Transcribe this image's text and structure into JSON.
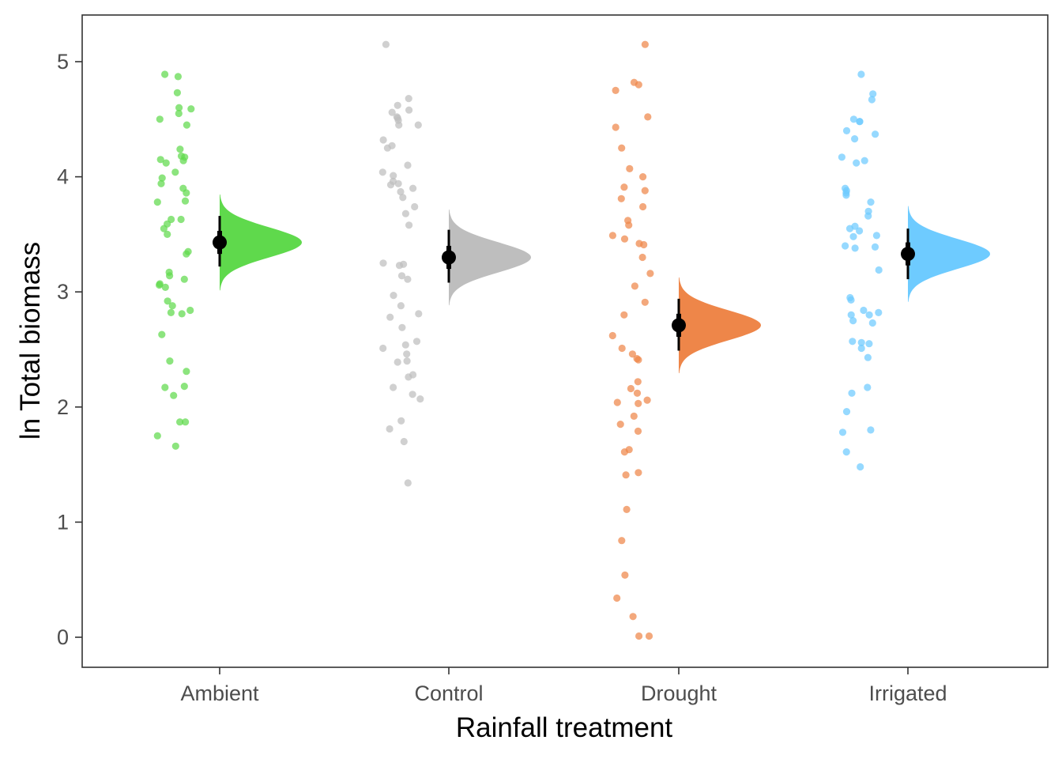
{
  "chart_data": {
    "type": "scatter",
    "subtype": "raincloud-halfeye",
    "title": "",
    "xlabel": "Rainfall treatment",
    "ylabel": "ln Total biomass",
    "ylim": [
      -0.25,
      5.35
    ],
    "yticks": [
      0,
      1,
      2,
      3,
      4,
      5
    ],
    "grid": false,
    "legend": "none",
    "categories": [
      "Ambient",
      "Control",
      "Drought",
      "Irrigated"
    ],
    "series": [
      {
        "category": "Ambient",
        "color": "#5FD94C",
        "mean": 3.43,
        "interval_66": [
          3.33,
          3.53
        ],
        "interval_95": [
          3.22,
          3.66
        ],
        "density_sd": 0.13,
        "points": [
          4.87,
          4.89,
          4.73,
          4.59,
          4.6,
          4.55,
          4.5,
          4.45,
          4.24,
          4.17,
          4.18,
          4.12,
          4.14,
          4.15,
          4.04,
          3.99,
          3.94,
          3.9,
          3.86,
          3.79,
          3.78,
          3.63,
          3.63,
          3.59,
          3.55,
          3.5,
          3.35,
          3.33,
          3.17,
          3.14,
          3.11,
          3.07,
          3.06,
          3.04,
          2.92,
          2.88,
          2.84,
          2.82,
          2.81,
          2.63,
          2.4,
          2.31,
          2.18,
          2.17,
          2.1,
          1.87,
          1.87,
          1.75,
          1.66
        ]
      },
      {
        "category": "Control",
        "color": "#BEBEBE",
        "mean": 3.3,
        "interval_66": [
          3.2,
          3.4
        ],
        "interval_95": [
          3.08,
          3.54
        ],
        "density_sd": 0.13,
        "points": [
          5.15,
          4.68,
          4.62,
          4.58,
          4.56,
          4.52,
          4.51,
          4.49,
          4.45,
          4.45,
          4.32,
          4.27,
          4.25,
          4.1,
          4.04,
          4.01,
          3.96,
          3.94,
          3.93,
          3.9,
          3.87,
          3.82,
          3.74,
          3.68,
          3.58,
          3.25,
          3.24,
          3.23,
          3.14,
          3.11,
          2.97,
          2.88,
          2.81,
          2.78,
          2.69,
          2.57,
          2.54,
          2.51,
          2.46,
          2.4,
          2.39,
          2.28,
          2.26,
          2.17,
          2.11,
          2.07,
          1.88,
          1.81,
          1.7,
          1.34
        ]
      },
      {
        "category": "Drought",
        "color": "#EE8649",
        "mean": 2.71,
        "interval_66": [
          2.61,
          2.81
        ],
        "interval_95": [
          2.49,
          2.94
        ],
        "density_sd": 0.13,
        "points": [
          5.15,
          4.82,
          4.8,
          4.75,
          4.52,
          4.43,
          4.25,
          4.07,
          4.0,
          3.91,
          3.88,
          3.81,
          3.74,
          3.62,
          3.58,
          3.49,
          3.46,
          3.42,
          3.41,
          3.3,
          3.16,
          3.05,
          2.91,
          2.8,
          2.62,
          2.51,
          2.46,
          2.42,
          2.41,
          2.22,
          2.16,
          2.12,
          2.06,
          2.03,
          2.04,
          1.92,
          1.85,
          1.79,
          1.63,
          1.61,
          1.43,
          1.41,
          1.11,
          0.84,
          0.54,
          0.34,
          0.18,
          0.01,
          0.01
        ]
      },
      {
        "category": "Irrigated",
        "color": "#6ECBFF",
        "mean": 3.33,
        "interval_66": [
          3.23,
          3.43
        ],
        "interval_95": [
          3.11,
          3.55
        ],
        "density_sd": 0.13,
        "points": [
          4.89,
          4.72,
          4.67,
          4.5,
          4.48,
          4.48,
          4.4,
          4.37,
          4.33,
          4.17,
          4.14,
          4.12,
          3.9,
          3.88,
          3.86,
          3.84,
          3.78,
          3.7,
          3.66,
          3.57,
          3.55,
          3.53,
          3.49,
          3.48,
          3.4,
          3.39,
          3.38,
          3.19,
          2.95,
          2.93,
          2.84,
          2.82,
          2.8,
          2.8,
          2.75,
          2.73,
          2.57,
          2.56,
          2.55,
          2.51,
          2.43,
          2.17,
          2.12,
          1.96,
          1.8,
          1.78,
          1.61,
          1.48
        ]
      }
    ]
  }
}
